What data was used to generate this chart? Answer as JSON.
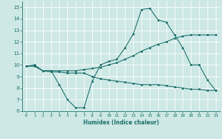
{
  "xlabel": "Humidex (Indice chaleur)",
  "bg_color": "#cde8e5",
  "line_color": "#1a6e6a",
  "grid_color": "#ffffff",
  "xlim": [
    -0.5,
    23.5
  ],
  "ylim": [
    6,
    15.5
  ],
  "yticks": [
    6,
    7,
    8,
    9,
    10,
    11,
    12,
    13,
    14,
    15
  ],
  "xticks": [
    0,
    1,
    2,
    3,
    4,
    5,
    6,
    7,
    8,
    9,
    10,
    11,
    12,
    13,
    14,
    15,
    16,
    17,
    18,
    19,
    20,
    21,
    22,
    23
  ],
  "series": [
    {
      "x": [
        0,
        1,
        2,
        3,
        4,
        5,
        6,
        7,
        8,
        9,
        10,
        11,
        12,
        13,
        14,
        15,
        16,
        17,
        18,
        19,
        20,
        21,
        22,
        23
      ],
      "y": [
        9.9,
        10.0,
        9.5,
        9.5,
        8.3,
        7.0,
        6.3,
        6.3,
        8.6,
        10.0,
        10.3,
        10.5,
        11.5,
        12.7,
        14.8,
        14.9,
        13.9,
        13.7,
        12.6,
        11.5,
        10.0,
        10.0,
        8.7,
        7.8
      ]
    },
    {
      "x": [
        0,
        1,
        2,
        3,
        4,
        5,
        6,
        7,
        8,
        9,
        10,
        11,
        12,
        13,
        14,
        15,
        16,
        17,
        18,
        19,
        20,
        21,
        22,
        23
      ],
      "y": [
        9.9,
        9.9,
        9.5,
        9.5,
        9.5,
        9.5,
        9.5,
        9.6,
        9.7,
        9.8,
        10.0,
        10.2,
        10.5,
        10.8,
        11.2,
        11.5,
        11.8,
        12.0,
        12.3,
        12.5,
        12.6,
        12.6,
        12.6,
        12.6
      ]
    },
    {
      "x": [
        0,
        1,
        2,
        3,
        4,
        5,
        6,
        7,
        8,
        9,
        10,
        11,
        12,
        13,
        14,
        15,
        16,
        17,
        18,
        19,
        20,
        21,
        22,
        23
      ],
      "y": [
        9.9,
        9.9,
        9.5,
        9.4,
        9.4,
        9.3,
        9.3,
        9.3,
        9.0,
        8.8,
        8.7,
        8.6,
        8.5,
        8.4,
        8.3,
        8.3,
        8.3,
        8.2,
        8.1,
        8.0,
        7.9,
        7.9,
        7.8,
        7.8
      ]
    }
  ]
}
